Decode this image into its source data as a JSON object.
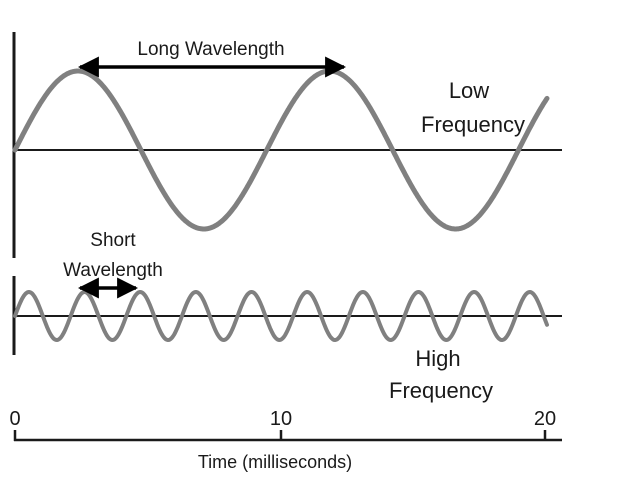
{
  "labels": {
    "long_wavelength": "Long Wavelength",
    "low_frequency_line1": "Low",
    "low_frequency_line2": "Frequency",
    "short_wavelength_line1": "Short",
    "short_wavelength_line2": "Wavelength",
    "high_frequency_line1": "High",
    "high_frequency_line2": "Frequency"
  },
  "time_axis": {
    "label": "Time (milliseconds)",
    "ticks": [
      "0",
      "10",
      "20"
    ],
    "range_ms": [
      0,
      20
    ]
  },
  "low_frequency_wave": {
    "period_ms": 9.5,
    "shown_start_ms": 0,
    "shown_end_ms": 20
  },
  "high_frequency_wave": {
    "period_ms": 2.1,
    "shown_start_ms": 0,
    "shown_end_ms": 20
  },
  "colors": {
    "wave": "#808080",
    "axis": "#1a1a1a"
  }
}
